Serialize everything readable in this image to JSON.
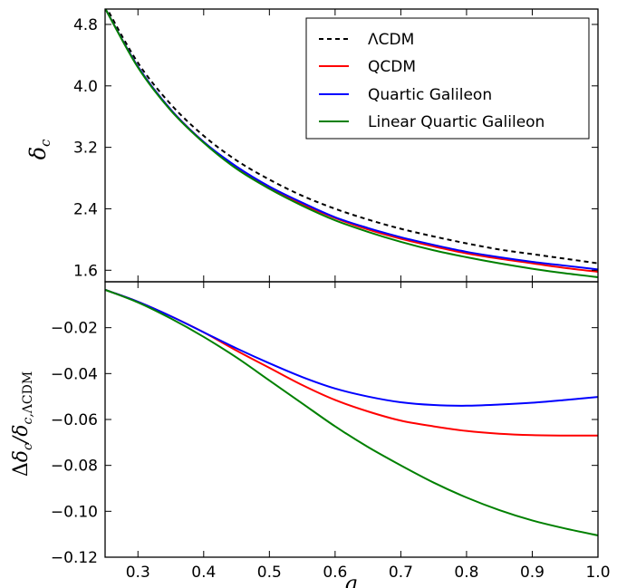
{
  "chart_data": [
    {
      "type": "line",
      "panel": "top",
      "xlabel": "",
      "ylabel": "δ_c",
      "xlim": [
        0.25,
        1.0
      ],
      "ylim": [
        1.45,
        5.0
      ],
      "yticks": [
        1.6,
        2.4,
        3.2,
        4.0,
        4.8
      ],
      "ytick_labels": [
        "1.6",
        "2.4",
        "3.2",
        "4.0",
        "4.8"
      ],
      "legend_position": "top-right",
      "series": [
        {
          "name": "ΛCDM",
          "color": "#000000",
          "dash": "dashed",
          "x": [
            0.25,
            0.3,
            0.35,
            0.4,
            0.45,
            0.5,
            0.55,
            0.6,
            0.65,
            0.7,
            0.75,
            0.8,
            0.85,
            0.9,
            0.95,
            1.0
          ],
          "y": [
            5.05,
            4.3,
            3.76,
            3.35,
            3.03,
            2.78,
            2.57,
            2.4,
            2.26,
            2.14,
            2.04,
            1.95,
            1.87,
            1.81,
            1.75,
            1.69
          ]
        },
        {
          "name": "QCDM",
          "color": "#ff0000",
          "dash": "solid",
          "x": [
            0.25,
            0.3,
            0.35,
            0.4,
            0.45,
            0.5,
            0.55,
            0.6,
            0.65,
            0.7,
            0.75,
            0.8,
            0.85,
            0.9,
            0.95,
            1.0
          ],
          "y": [
            5.01,
            4.25,
            3.69,
            3.27,
            2.94,
            2.68,
            2.46,
            2.28,
            2.13,
            2.01,
            1.91,
            1.82,
            1.75,
            1.69,
            1.63,
            1.58
          ]
        },
        {
          "name": "Quartic Galileon",
          "color": "#0000ff",
          "dash": "solid",
          "x": [
            0.25,
            0.3,
            0.35,
            0.4,
            0.45,
            0.5,
            0.55,
            0.6,
            0.65,
            0.7,
            0.75,
            0.8,
            0.85,
            0.9,
            0.95,
            1.0
          ],
          "y": [
            5.01,
            4.25,
            3.69,
            3.27,
            2.95,
            2.69,
            2.48,
            2.29,
            2.15,
            2.03,
            1.93,
            1.84,
            1.77,
            1.71,
            1.66,
            1.61
          ]
        },
        {
          "name": "Linear Quartic Galileon",
          "color": "#008000",
          "dash": "solid",
          "x": [
            0.25,
            0.3,
            0.35,
            0.4,
            0.45,
            0.5,
            0.55,
            0.6,
            0.65,
            0.7,
            0.75,
            0.8,
            0.85,
            0.9,
            0.95,
            1.0
          ],
          "y": [
            5.01,
            4.24,
            3.68,
            3.26,
            2.92,
            2.66,
            2.44,
            2.25,
            2.1,
            1.97,
            1.86,
            1.77,
            1.69,
            1.62,
            1.56,
            1.51
          ]
        }
      ]
    },
    {
      "type": "line",
      "panel": "bottom",
      "xlabel": "a",
      "ylabel": "Δδ_c/δ_c,ΛCDM",
      "xlim": [
        0.25,
        1.0
      ],
      "ylim": [
        -0.12,
        0.0
      ],
      "xticks": [
        0.3,
        0.4,
        0.5,
        0.6,
        0.7,
        0.8,
        0.9,
        1.0
      ],
      "xtick_labels": [
        "0.3",
        "0.4",
        "0.5",
        "0.6",
        "0.7",
        "0.8",
        "0.9",
        "1.0"
      ],
      "yticks": [
        -0.02,
        -0.04,
        -0.06,
        -0.08,
        -0.1,
        -0.12
      ],
      "ytick_labels": [
        "−0.02",
        "−0.04",
        "−0.06",
        "−0.08",
        "−0.10",
        "−0.12"
      ],
      "series": [
        {
          "name": "QCDM",
          "color": "#ff0000",
          "x": [
            0.25,
            0.3,
            0.35,
            0.4,
            0.45,
            0.5,
            0.55,
            0.6,
            0.65,
            0.7,
            0.75,
            0.8,
            0.85,
            0.9,
            0.95,
            1.0
          ],
          "y": [
            -0.0035,
            -0.0087,
            -0.015,
            -0.022,
            -0.03,
            -0.0375,
            -0.045,
            -0.0515,
            -0.0565,
            -0.0605,
            -0.063,
            -0.065,
            -0.0662,
            -0.0668,
            -0.067,
            -0.067
          ]
        },
        {
          "name": "Quartic Galileon",
          "color": "#0000ff",
          "x": [
            0.25,
            0.3,
            0.35,
            0.4,
            0.45,
            0.5,
            0.55,
            0.6,
            0.65,
            0.7,
            0.75,
            0.8,
            0.85,
            0.9,
            0.95,
            1.0
          ],
          "y": [
            -0.0035,
            -0.0087,
            -0.015,
            -0.022,
            -0.029,
            -0.0355,
            -0.0415,
            -0.0465,
            -0.05,
            -0.0525,
            -0.0537,
            -0.054,
            -0.0535,
            -0.0527,
            -0.0515,
            -0.0502
          ]
        },
        {
          "name": "Linear Quartic Galileon",
          "color": "#008000",
          "x": [
            0.25,
            0.3,
            0.35,
            0.4,
            0.45,
            0.5,
            0.55,
            0.6,
            0.65,
            0.7,
            0.75,
            0.8,
            0.85,
            0.9,
            0.95,
            1.0
          ],
          "y": [
            -0.0035,
            -0.009,
            -0.016,
            -0.024,
            -0.033,
            -0.043,
            -0.053,
            -0.063,
            -0.072,
            -0.08,
            -0.0875,
            -0.094,
            -0.0995,
            -0.104,
            -0.1075,
            -0.1105
          ]
        }
      ]
    }
  ]
}
